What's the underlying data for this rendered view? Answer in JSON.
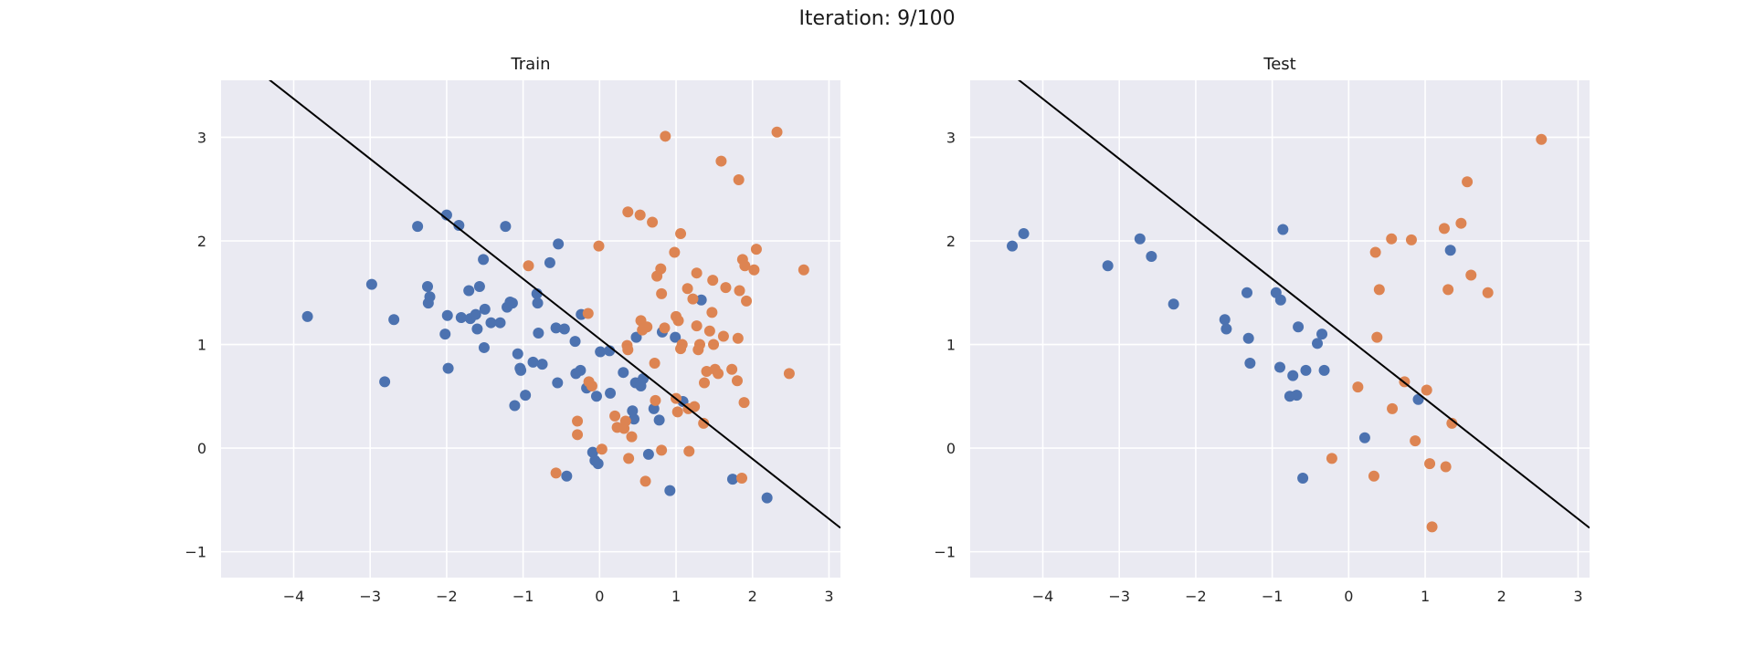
{
  "figure": {
    "suptitle": "Iteration: 9/100"
  },
  "chart_data": [
    {
      "type": "scatter",
      "title": "Train",
      "xlabel": "",
      "ylabel": "",
      "xlim": [
        -4.95,
        3.15
      ],
      "ylim": [
        -1.25,
        3.55
      ],
      "xticks": [
        -4,
        -3,
        -2,
        -1,
        0,
        1,
        2,
        3
      ],
      "yticks": [
        -1,
        0,
        1,
        2,
        3
      ],
      "grid": true,
      "style": "seaborn-darkgrid",
      "decision_boundary": {
        "points": [
          [
            -5.0,
            3.95
          ],
          [
            3.15,
            -0.77
          ]
        ],
        "color": "#000000"
      },
      "series": [
        {
          "color": "#4c72b0",
          "points": [
            [
              -3.82,
              1.27
            ],
            [
              -2.98,
              1.58
            ],
            [
              -2.81,
              0.64
            ],
            [
              -2.69,
              1.24
            ],
            [
              -2.38,
              2.14
            ],
            [
              -2.25,
              1.56
            ],
            [
              -2.24,
              1.4
            ],
            [
              -2.22,
              1.46
            ],
            [
              -2.02,
              1.1
            ],
            [
              -2.0,
              2.25
            ],
            [
              -1.99,
              1.28
            ],
            [
              -1.98,
              0.77
            ],
            [
              -1.84,
              2.15
            ],
            [
              -1.81,
              1.26
            ],
            [
              -1.71,
              1.52
            ],
            [
              -1.69,
              1.25
            ],
            [
              -1.62,
              1.29
            ],
            [
              -1.6,
              1.15
            ],
            [
              -1.57,
              1.56
            ],
            [
              -1.52,
              1.82
            ],
            [
              -1.51,
              0.97
            ],
            [
              -1.5,
              1.34
            ],
            [
              -1.42,
              1.21
            ],
            [
              -1.3,
              1.21
            ],
            [
              -1.23,
              2.14
            ],
            [
              -1.21,
              1.36
            ],
            [
              -1.17,
              1.41
            ],
            [
              -1.14,
              1.4
            ],
            [
              -1.11,
              0.41
            ],
            [
              -1.07,
              0.91
            ],
            [
              -1.04,
              0.77
            ],
            [
              -1.03,
              0.75
            ],
            [
              -0.97,
              0.51
            ],
            [
              -0.87,
              0.83
            ],
            [
              -0.82,
              1.49
            ],
            [
              -0.81,
              1.4
            ],
            [
              -0.8,
              1.11
            ],
            [
              -0.75,
              0.81
            ],
            [
              -0.65,
              1.79
            ],
            [
              -0.57,
              1.16
            ],
            [
              -0.55,
              0.63
            ],
            [
              -0.54,
              1.97
            ],
            [
              -0.46,
              1.15
            ],
            [
              -0.43,
              -0.27
            ],
            [
              -0.32,
              1.03
            ],
            [
              -0.31,
              0.72
            ],
            [
              -0.25,
              0.75
            ],
            [
              -0.24,
              1.29
            ],
            [
              -0.17,
              0.58
            ],
            [
              -0.12,
              0.6
            ],
            [
              -0.09,
              -0.04
            ],
            [
              -0.06,
              -0.12
            ],
            [
              -0.04,
              0.5
            ],
            [
              -0.02,
              -0.15
            ],
            [
              0.01,
              0.93
            ],
            [
              0.13,
              0.94
            ],
            [
              0.14,
              0.53
            ],
            [
              0.31,
              0.73
            ],
            [
              0.43,
              0.36
            ],
            [
              0.45,
              0.28
            ],
            [
              0.47,
              0.63
            ],
            [
              0.48,
              1.07
            ],
            [
              0.54,
              0.6
            ],
            [
              0.57,
              0.67
            ],
            [
              0.64,
              -0.06
            ],
            [
              0.71,
              0.38
            ],
            [
              0.78,
              0.27
            ],
            [
              0.82,
              1.12
            ],
            [
              0.92,
              -0.41
            ],
            [
              0.99,
              1.07
            ],
            [
              1.09,
              0.45
            ],
            [
              1.33,
              1.43
            ],
            [
              1.74,
              -0.3
            ],
            [
              2.19,
              -0.48
            ]
          ]
        },
        {
          "color": "#dd8452",
          "points": [
            [
              -0.93,
              1.76
            ],
            [
              -0.57,
              -0.24
            ],
            [
              -0.29,
              0.26
            ],
            [
              -0.29,
              0.13
            ],
            [
              -0.15,
              1.3
            ],
            [
              -0.14,
              0.64
            ],
            [
              -0.1,
              0.6
            ],
            [
              -0.01,
              1.95
            ],
            [
              0.03,
              -0.01
            ],
            [
              0.2,
              0.31
            ],
            [
              0.23,
              0.2
            ],
            [
              0.32,
              0.19
            ],
            [
              0.34,
              0.26
            ],
            [
              0.36,
              0.99
            ],
            [
              0.37,
              0.95
            ],
            [
              0.37,
              2.28
            ],
            [
              0.38,
              -0.1
            ],
            [
              0.42,
              0.11
            ],
            [
              0.53,
              2.25
            ],
            [
              0.54,
              1.23
            ],
            [
              0.56,
              1.14
            ],
            [
              0.6,
              -0.32
            ],
            [
              0.62,
              1.17
            ],
            [
              0.69,
              2.18
            ],
            [
              0.72,
              0.82
            ],
            [
              0.73,
              0.46
            ],
            [
              0.75,
              1.66
            ],
            [
              0.8,
              1.73
            ],
            [
              0.81,
              1.49
            ],
            [
              0.81,
              -0.02
            ],
            [
              0.85,
              1.16
            ],
            [
              0.86,
              3.01
            ],
            [
              0.98,
              1.89
            ],
            [
              1.0,
              0.48
            ],
            [
              1.0,
              1.27
            ],
            [
              1.02,
              0.35
            ],
            [
              1.03,
              1.23
            ],
            [
              1.06,
              2.07
            ],
            [
              1.06,
              0.96
            ],
            [
              1.08,
              1.0
            ],
            [
              1.15,
              1.54
            ],
            [
              1.16,
              0.38
            ],
            [
              1.17,
              -0.03
            ],
            [
              1.22,
              1.44
            ],
            [
              1.24,
              0.4
            ],
            [
              1.27,
              1.69
            ],
            [
              1.27,
              1.18
            ],
            [
              1.29,
              0.95
            ],
            [
              1.31,
              1.0
            ],
            [
              1.36,
              0.24
            ],
            [
              1.37,
              0.63
            ],
            [
              1.4,
              0.74
            ],
            [
              1.44,
              1.13
            ],
            [
              1.47,
              1.31
            ],
            [
              1.48,
              1.62
            ],
            [
              1.49,
              1.0
            ],
            [
              1.51,
              0.76
            ],
            [
              1.55,
              0.72
            ],
            [
              1.59,
              2.77
            ],
            [
              1.62,
              1.08
            ],
            [
              1.65,
              1.55
            ],
            [
              1.73,
              0.76
            ],
            [
              1.8,
              0.65
            ],
            [
              1.81,
              1.06
            ],
            [
              1.82,
              2.59
            ],
            [
              1.83,
              1.52
            ],
            [
              1.86,
              -0.29
            ],
            [
              1.87,
              1.82
            ],
            [
              1.89,
              0.44
            ],
            [
              1.9,
              1.76
            ],
            [
              1.92,
              1.42
            ],
            [
              2.02,
              1.72
            ],
            [
              2.05,
              1.92
            ],
            [
              2.32,
              3.05
            ],
            [
              2.48,
              0.72
            ],
            [
              2.67,
              1.72
            ]
          ]
        }
      ]
    },
    {
      "type": "scatter",
      "title": "Test",
      "xlabel": "",
      "ylabel": "",
      "xlim": [
        -4.95,
        3.15
      ],
      "ylim": [
        -1.25,
        3.55
      ],
      "xticks": [
        -4,
        -3,
        -2,
        -1,
        0,
        1,
        2,
        3
      ],
      "yticks": [
        -1,
        0,
        1,
        2,
        3
      ],
      "grid": true,
      "style": "seaborn-darkgrid",
      "decision_boundary": {
        "points": [
          [
            -5.0,
            3.95
          ],
          [
            3.15,
            -0.77
          ]
        ],
        "color": "#000000"
      },
      "series": [
        {
          "color": "#4c72b0",
          "points": [
            [
              -4.4,
              1.95
            ],
            [
              -4.25,
              2.07
            ],
            [
              -3.15,
              1.76
            ],
            [
              -2.73,
              2.02
            ],
            [
              -2.58,
              1.85
            ],
            [
              -2.29,
              1.39
            ],
            [
              -1.62,
              1.24
            ],
            [
              -1.6,
              1.15
            ],
            [
              -1.33,
              1.5
            ],
            [
              -1.31,
              1.06
            ],
            [
              -1.29,
              0.82
            ],
            [
              -0.95,
              1.5
            ],
            [
              -0.9,
              0.78
            ],
            [
              -0.89,
              1.43
            ],
            [
              -0.86,
              2.11
            ],
            [
              -0.77,
              0.5
            ],
            [
              -0.73,
              0.7
            ],
            [
              -0.68,
              0.51
            ],
            [
              -0.66,
              1.17
            ],
            [
              -0.6,
              -0.29
            ],
            [
              -0.56,
              0.75
            ],
            [
              -0.41,
              1.01
            ],
            [
              -0.35,
              1.1
            ],
            [
              -0.32,
              0.75
            ],
            [
              0.21,
              0.1
            ],
            [
              0.91,
              0.47
            ],
            [
              1.33,
              1.91
            ]
          ]
        },
        {
          "color": "#dd8452",
          "points": [
            [
              -0.22,
              -0.1
            ],
            [
              0.12,
              0.59
            ],
            [
              0.33,
              -0.27
            ],
            [
              0.35,
              1.89
            ],
            [
              0.37,
              1.07
            ],
            [
              0.4,
              1.53
            ],
            [
              0.56,
              2.02
            ],
            [
              0.57,
              0.38
            ],
            [
              0.73,
              0.64
            ],
            [
              0.82,
              2.01
            ],
            [
              0.87,
              0.07
            ],
            [
              1.02,
              0.56
            ],
            [
              1.06,
              -0.15
            ],
            [
              1.09,
              -0.76
            ],
            [
              1.25,
              2.12
            ],
            [
              1.27,
              -0.18
            ],
            [
              1.3,
              1.53
            ],
            [
              1.35,
              0.24
            ],
            [
              1.47,
              2.17
            ],
            [
              1.55,
              2.57
            ],
            [
              1.6,
              1.67
            ],
            [
              1.82,
              1.5
            ],
            [
              2.52,
              2.98
            ]
          ]
        }
      ]
    }
  ]
}
